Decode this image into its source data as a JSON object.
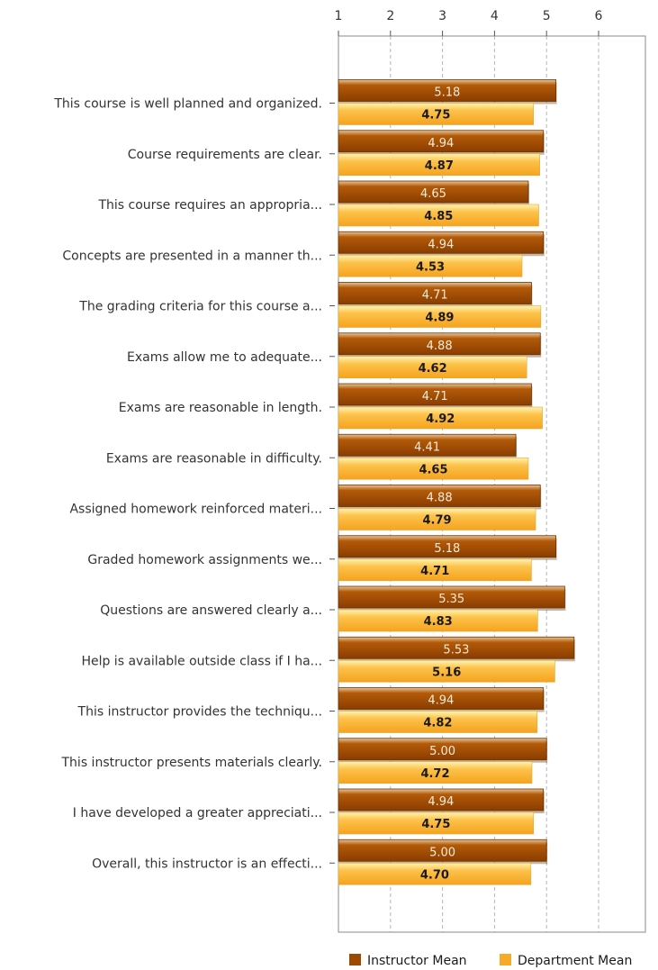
{
  "chart_data": {
    "type": "bar",
    "orientation": "horizontal",
    "categories": [
      "This course is well planned and organized.",
      "Course requirements are clear.",
      "This course requires an appropria...",
      "Concepts are presented in a manner th...",
      "The grading criteria for this course a...",
      "Exams allow me to adequate...",
      "Exams are reasonable in length.",
      "Exams are reasonable in difficulty.",
      "Assigned homework reinforced materi...",
      "Graded homework assignments we...",
      "Questions are answered clearly a...",
      "Help is available outside class if I ha...",
      "This instructor provides the techniqu...",
      "This instructor presents materials clearly.",
      "I have developed a greater appreciati...",
      "Overall, this instructor is an effecti..."
    ],
    "series": [
      {
        "name": "Instructor Mean",
        "color": "#9c4a00",
        "values": [
          5.18,
          4.94,
          4.65,
          4.94,
          4.71,
          4.88,
          4.71,
          4.41,
          4.88,
          5.18,
          5.35,
          5.53,
          4.94,
          5.0,
          4.94,
          5.0
        ],
        "labels": [
          "5.18",
          "4.94",
          "4.65",
          "4.94",
          "4.71",
          "4.88",
          "4.71",
          "4.41",
          "4.88",
          "5.18",
          "5.35",
          "5.53",
          "4.94",
          "5.00",
          "4.94",
          "5.00"
        ]
      },
      {
        "name": "Department Mean",
        "color": "#f7a928",
        "values": [
          4.75,
          4.87,
          4.85,
          4.53,
          4.89,
          4.62,
          4.92,
          4.65,
          4.79,
          4.71,
          4.83,
          5.16,
          4.82,
          4.72,
          4.75,
          4.7
        ],
        "labels": [
          "4.75",
          "4.87",
          "4.85",
          "4.53",
          "4.89",
          "4.62",
          "4.92",
          "4.65",
          "4.79",
          "4.71",
          "4.83",
          "5.16",
          "4.82",
          "4.72",
          "4.75",
          "4.70"
        ]
      }
    ],
    "xaxis": {
      "position": "top",
      "range": [
        1,
        6.9
      ],
      "ticks": [
        1,
        2,
        3,
        4,
        5,
        6
      ],
      "tick_labels": [
        "1",
        "2",
        "3",
        "4",
        "5",
        "6"
      ]
    },
    "grid": "vertical-dashed",
    "legend": "bottom-right"
  }
}
